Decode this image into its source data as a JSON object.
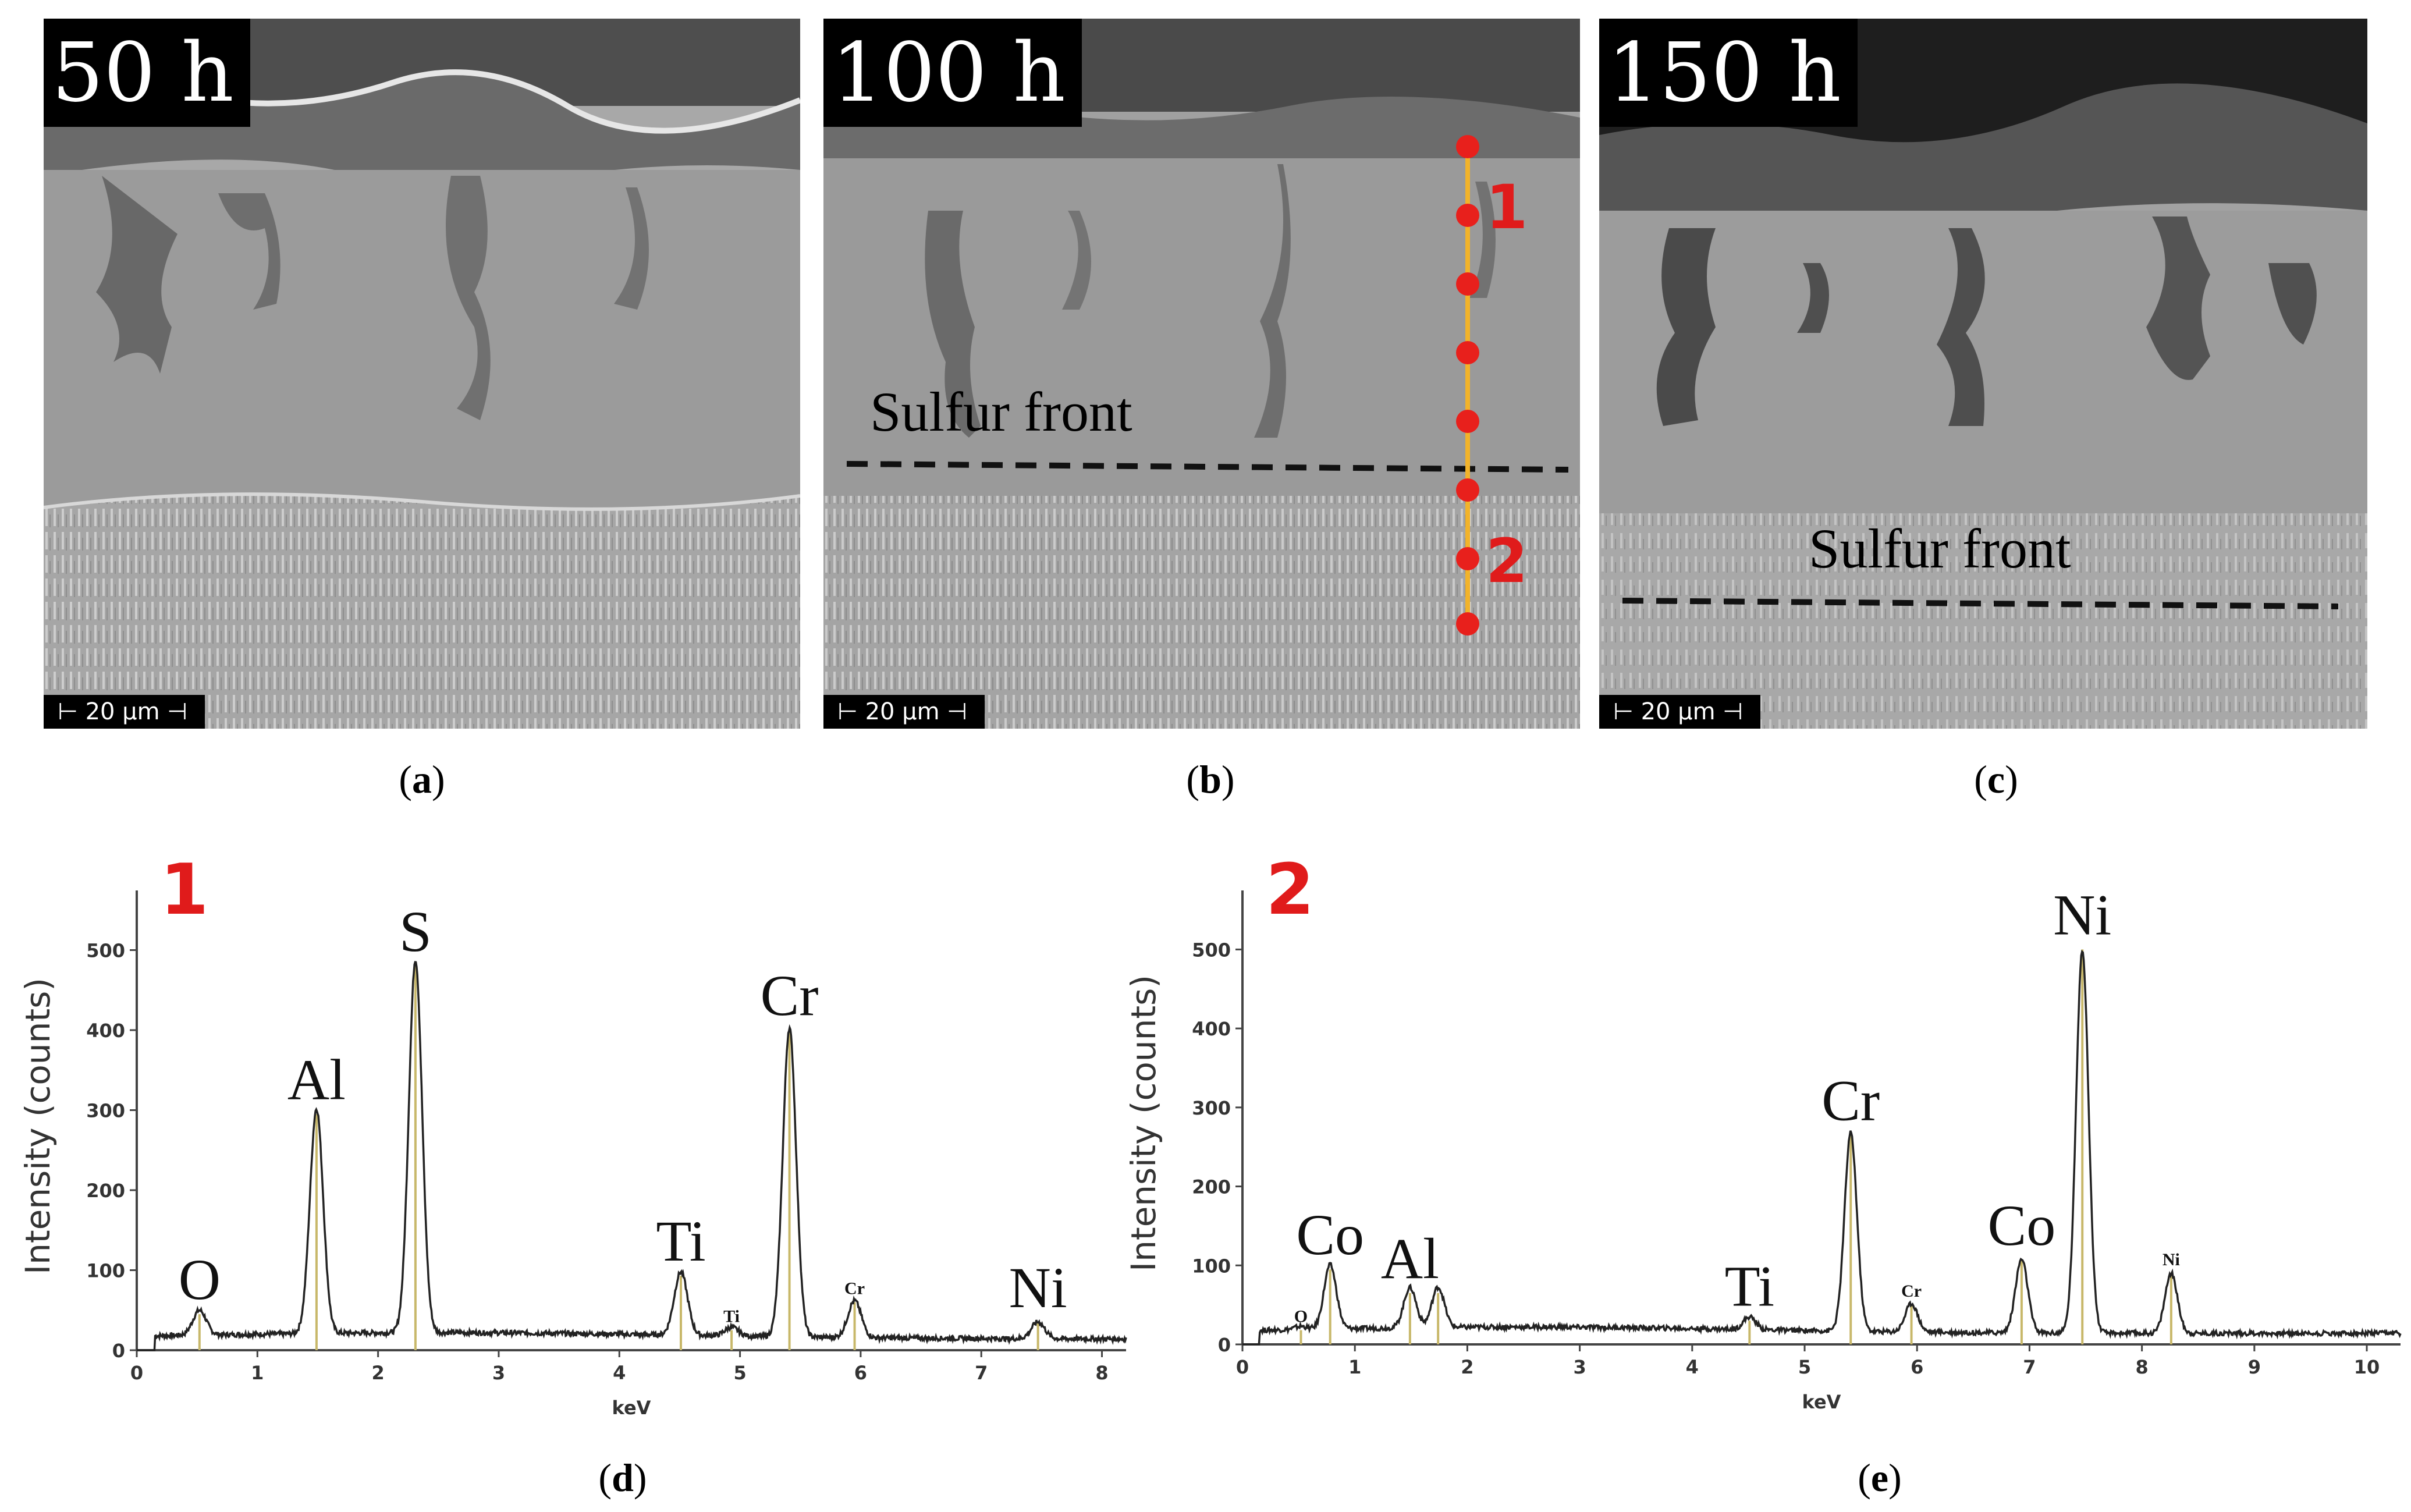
{
  "sem_panels": [
    {
      "id": "a",
      "time": "50 h",
      "scale": "20 µm",
      "caption_letter": "a"
    },
    {
      "id": "b",
      "time": "100 h",
      "scale": "20 µm",
      "caption_letter": "b",
      "sulfur_label": "Sulfur front",
      "point1": "1",
      "point2": "2"
    },
    {
      "id": "c",
      "time": "150 h",
      "scale": "20 µm",
      "caption_letter": "c",
      "sulfur_label": "Sulfur front"
    }
  ],
  "spectra_captions": {
    "d": "d",
    "e": "e"
  },
  "colors": {
    "marker": "#e8201c",
    "line_scan": "#f2b32a",
    "peak_line": "#c8b86a",
    "spectrum": "#222222",
    "point_number": "#e01b1b"
  },
  "chart_data": [
    {
      "type": "line",
      "panel": "d",
      "point_label": "1",
      "xlabel": "keV",
      "ylabel": "Intensity (counts)",
      "xlim": [
        0,
        8.2
      ],
      "ylim": [
        0,
        560
      ],
      "x_ticks": [
        0,
        1,
        2,
        3,
        4,
        5,
        6,
        7,
        8
      ],
      "y_ticks": [
        0,
        100,
        200,
        300,
        400,
        500
      ],
      "peaks": [
        {
          "label": "O",
          "keV": 0.52,
          "counts": 45
        },
        {
          "label": "Al",
          "keV": 1.49,
          "counts": 295
        },
        {
          "label": "S",
          "keV": 2.31,
          "counts": 480
        },
        {
          "label": "Ti",
          "keV": 4.51,
          "counts": 93
        },
        {
          "label": "Ti",
          "keV": 4.93,
          "counts": 25,
          "minor": true
        },
        {
          "label": "Cr",
          "keV": 5.41,
          "counts": 400
        },
        {
          "label": "Cr",
          "keV": 5.95,
          "counts": 60,
          "minor": true
        },
        {
          "label": "Ni",
          "keV": 7.47,
          "counts": 35
        }
      ]
    },
    {
      "type": "line",
      "panel": "e",
      "point_label": "2",
      "xlabel": "keV",
      "ylabel": "Intensity (counts)",
      "xlim": [
        0,
        10.3
      ],
      "ylim": [
        0,
        560
      ],
      "x_ticks": [
        0,
        1,
        2,
        3,
        4,
        5,
        6,
        7,
        8,
        9,
        10
      ],
      "y_ticks": [
        0,
        100,
        200,
        300,
        400,
        500
      ],
      "peaks": [
        {
          "label": "O",
          "keV": 0.52,
          "counts": 18,
          "minor": true
        },
        {
          "label": "Co",
          "keV": 0.78,
          "counts": 95
        },
        {
          "label": "Al",
          "keV": 1.49,
          "counts": 65
        },
        {
          "label": "Al",
          "keV": 1.74,
          "counts": 65,
          "unlabeled": true
        },
        {
          "label": "Ti",
          "keV": 4.51,
          "counts": 30
        },
        {
          "label": "Cr",
          "keV": 5.41,
          "counts": 265
        },
        {
          "label": "Cr",
          "keV": 5.95,
          "counts": 50,
          "minor": true
        },
        {
          "label": "Co",
          "keV": 6.93,
          "counts": 107
        },
        {
          "label": "Ni",
          "keV": 7.47,
          "counts": 500
        },
        {
          "label": "Ni",
          "keV": 8.26,
          "counts": 90,
          "minor": true
        }
      ]
    }
  ]
}
